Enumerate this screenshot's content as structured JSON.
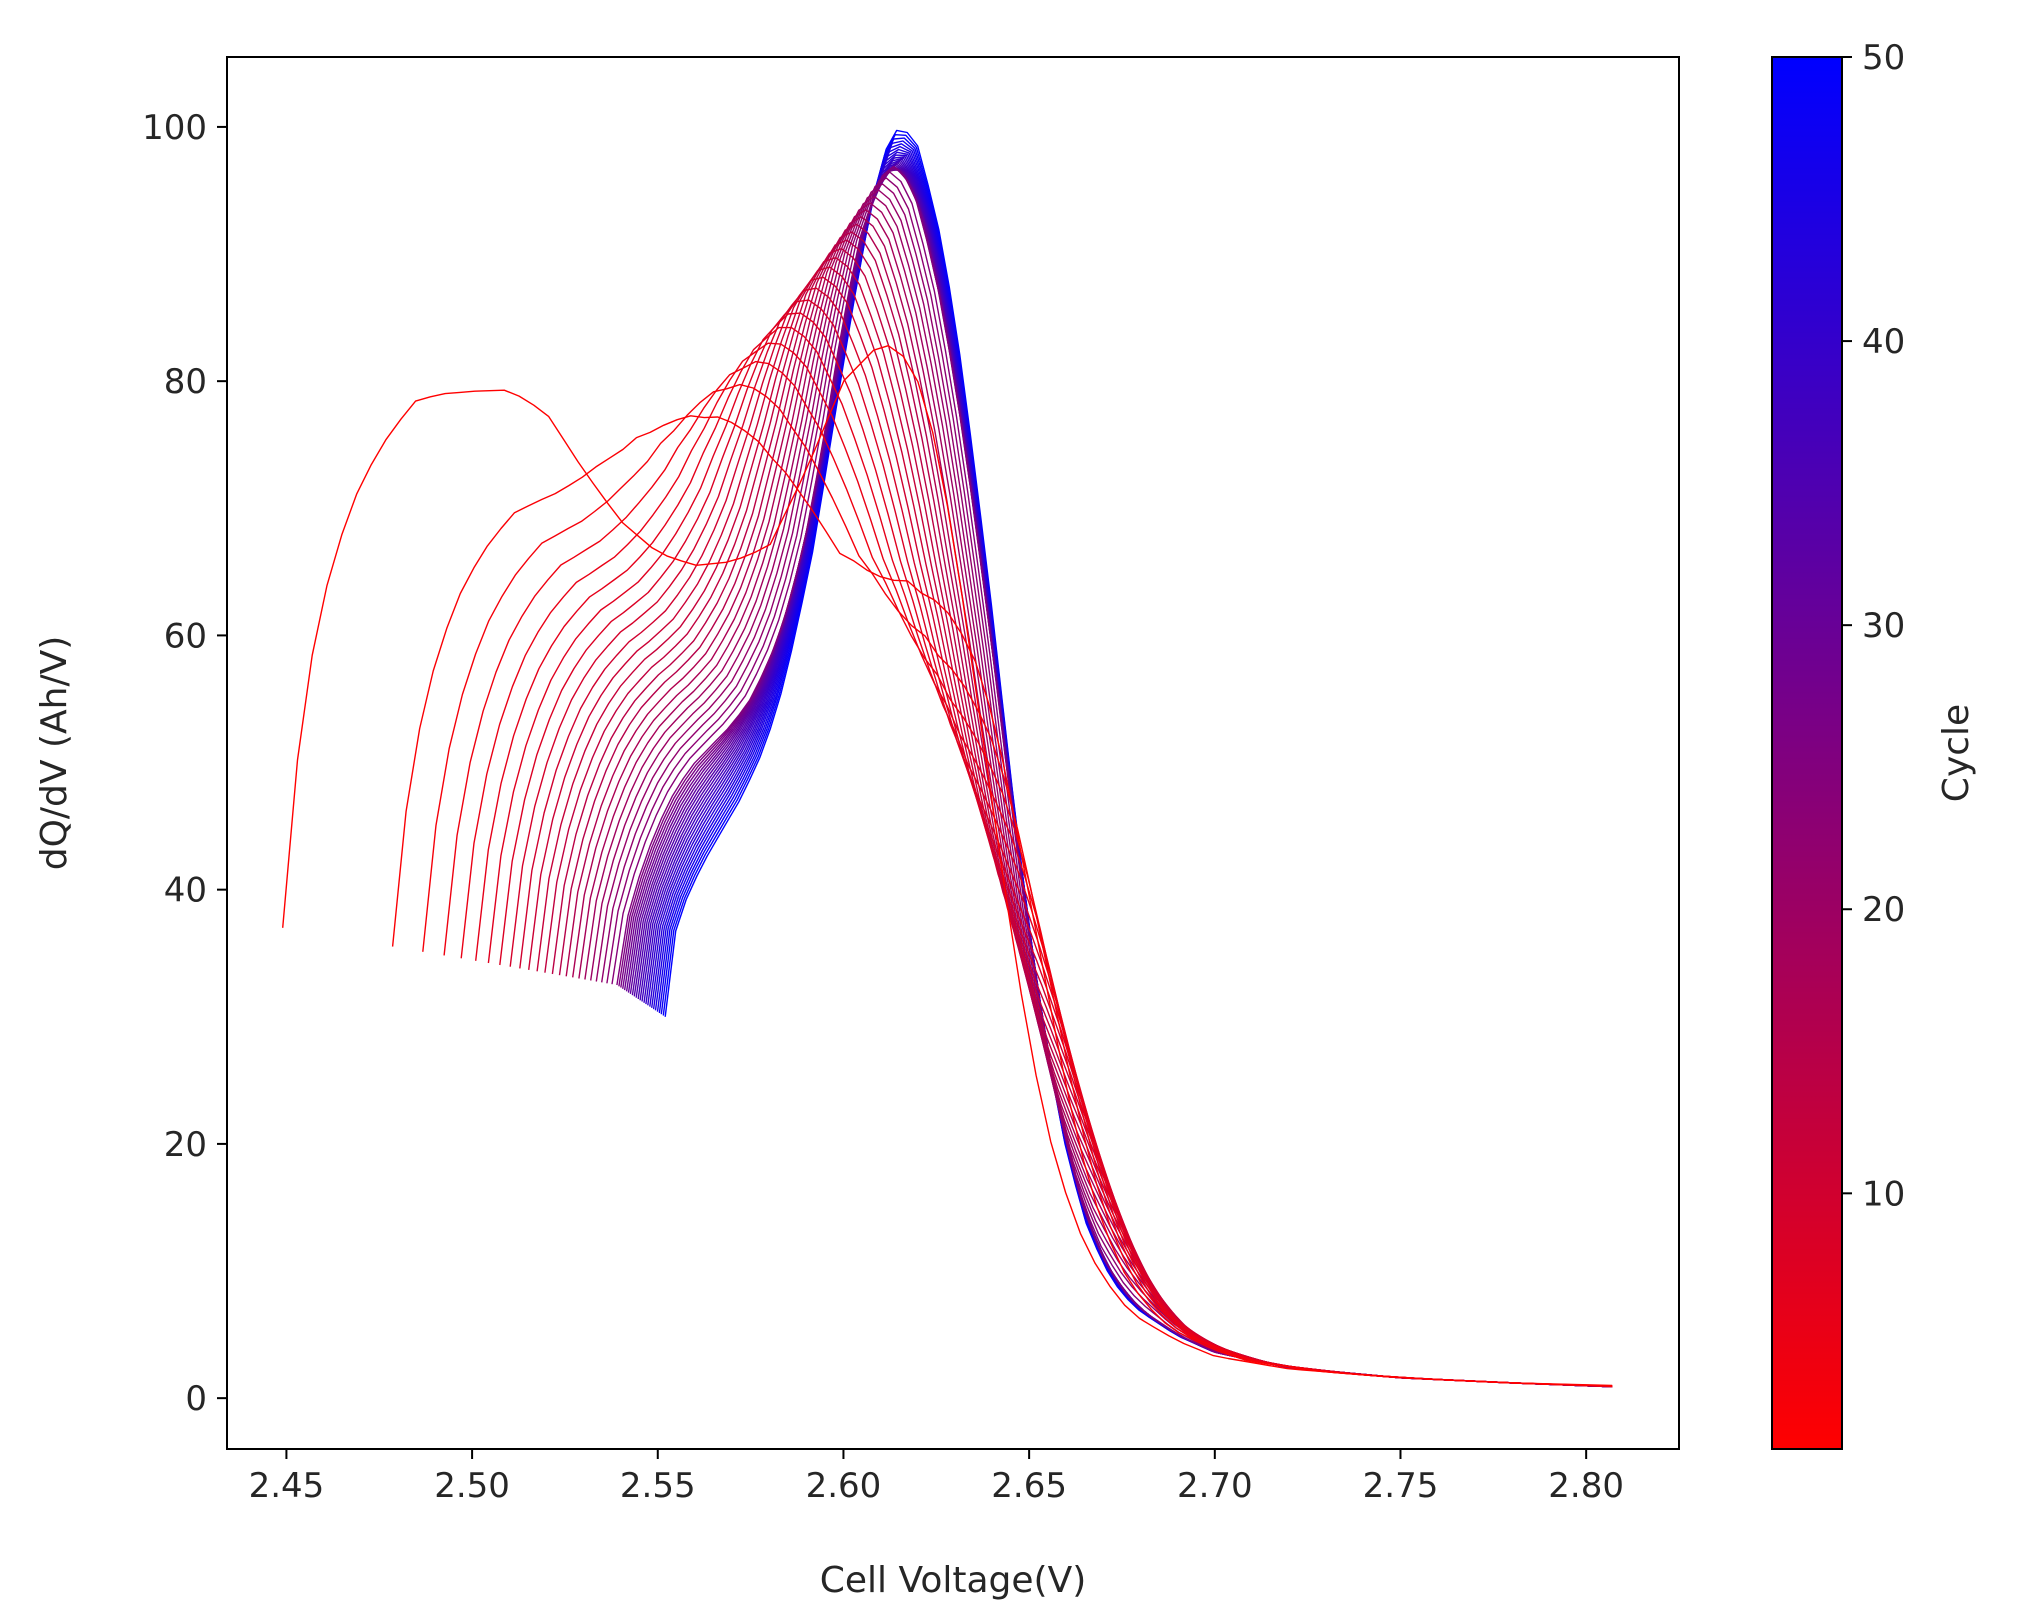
{
  "chart_data": {
    "type": "line",
    "title": "",
    "xlabel": "Cell Voltage(V)",
    "ylabel": "dQ/dV (Ah/V)",
    "xlim": [
      2.434,
      2.825
    ],
    "ylim": [
      -4,
      105.5
    ],
    "xticks": [
      "2.45",
      "2.50",
      "2.55",
      "2.60",
      "2.65",
      "2.70",
      "2.75",
      "2.80"
    ],
    "yticks": [
      "0",
      "20",
      "40",
      "60",
      "80",
      "100"
    ],
    "grid": false,
    "legend": "none",
    "series_count": 50,
    "representative_curves": [
      {
        "cycle": 1,
        "x": [
          2.449,
          2.452,
          2.456,
          2.46,
          2.465,
          2.47,
          2.478,
          2.485,
          2.492,
          2.5,
          2.51,
          2.52,
          2.53,
          2.54,
          2.55,
          2.56,
          2.57,
          2.58,
          2.59,
          2.6,
          2.61,
          2.615,
          2.62,
          2.625,
          2.63,
          2.635,
          2.64,
          2.645,
          2.65,
          2.655,
          2.66,
          2.665,
          2.67,
          2.675,
          2.68,
          2.69,
          2.7,
          2.72,
          2.75,
          2.78,
          2.807
        ],
        "y": [
          37,
          48,
          57,
          63,
          68,
          72,
          76,
          78.5,
          79,
          79.2,
          79.3,
          77.5,
          73,
          69,
          66.5,
          65.5,
          65.8,
          67,
          73,
          80,
          83,
          82.5,
          80,
          75,
          67,
          57,
          47,
          37,
          28,
          21,
          16,
          12,
          9.5,
          7.5,
          6.2,
          4.5,
          3.3,
          2.3,
          1.6,
          1.2,
          1.0
        ]
      },
      {
        "cycle": 25,
        "x": [
          2.539,
          2.542,
          2.546,
          2.55,
          2.555,
          2.56,
          2.565,
          2.57,
          2.575,
          2.58,
          2.585,
          2.59,
          2.595,
          2.6,
          2.605,
          2.61,
          2.613,
          2.617,
          2.62,
          2.625,
          2.63,
          2.635,
          2.64,
          2.645,
          2.65,
          2.655,
          2.66,
          2.665,
          2.67,
          2.675,
          2.68,
          2.69,
          2.7,
          2.72,
          2.75,
          2.78,
          2.807
        ],
        "y": [
          32.5,
          38,
          42,
          45,
          48,
          50,
          51.5,
          53,
          55,
          58,
          62,
          68,
          76,
          85,
          92,
          96,
          97,
          96,
          94,
          88,
          80,
          70,
          59,
          47,
          36,
          27,
          20,
          14.5,
          11,
          8.6,
          7,
          5,
          3.6,
          2.4,
          1.6,
          1.2,
          0.9
        ]
      },
      {
        "cycle": 50,
        "x": [
          2.552,
          2.553,
          2.555,
          2.558,
          2.562,
          2.567,
          2.572,
          2.577,
          2.582,
          2.587,
          2.592,
          2.597,
          2.602,
          2.607,
          2.61,
          2.613,
          2.616,
          2.62,
          2.625,
          2.63,
          2.635,
          2.64,
          2.645,
          2.65,
          2.655,
          2.66,
          2.665,
          2.67,
          2.675,
          2.68,
          2.69,
          2.7,
          2.72,
          2.75,
          2.78,
          2.807
        ],
        "y": [
          30,
          34,
          37,
          39.5,
          42,
          44.5,
          47,
          50,
          54,
          60,
          67,
          76,
          85,
          93,
          97,
          99.5,
          100,
          98.5,
          93,
          85,
          74,
          62,
          49,
          37,
          27,
          19.5,
          14,
          10.5,
          8.2,
          6.8,
          4.9,
          3.6,
          2.4,
          1.6,
          1.2,
          0.9
        ]
      }
    ],
    "colorbar": {
      "label": "Cycle",
      "min": 1,
      "max": 50,
      "ticks": [
        "10",
        "20",
        "30",
        "40",
        "50"
      ],
      "color_low": "#ff0000",
      "color_high": "#0000ff"
    }
  }
}
